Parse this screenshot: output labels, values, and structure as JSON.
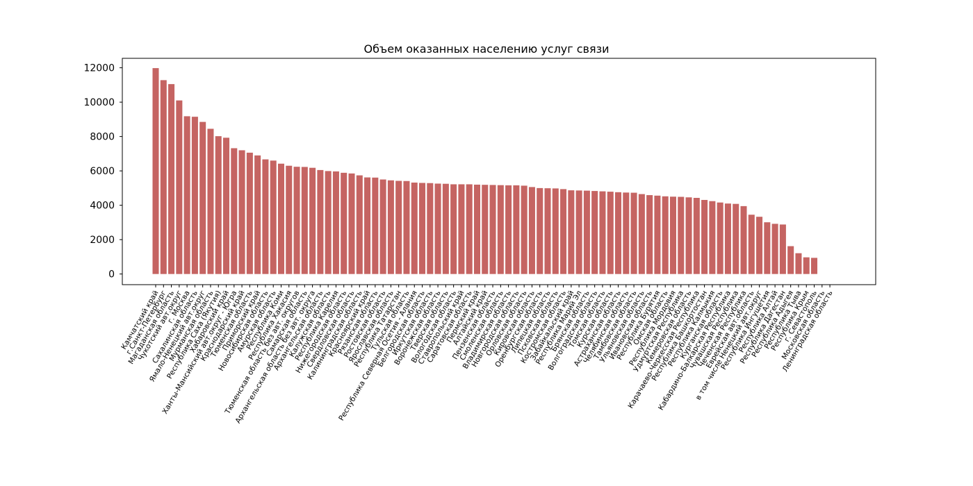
{
  "chart_data": {
    "type": "bar",
    "title": "Объем оказанных населению услуг связи",
    "xlabel": "",
    "ylabel": "",
    "ylim": [
      -620,
      12550
    ],
    "yticks": [
      0,
      2000,
      4000,
      6000,
      8000,
      10000,
      12000
    ],
    "ytick_labels": [
      "0",
      "2000",
      "4000",
      "6000",
      "8000",
      "10000",
      "12000"
    ],
    "bar_color": "#c56462",
    "grid": false,
    "legend": "none",
    "categories": [
      "Камчатский край",
      "г.Санкт-Петербург",
      "Магаданская область",
      "Чукотский авт.округ",
      "г. Москва",
      "Сахалинская область",
      "Ямало-Ненецкий авт.округ",
      "Мурманская область",
      "Республика Саха (Якутия)",
      "Хабаровский край",
      "Ханты-Мансийский авт.округ - Югра",
      "Краснодарский край",
      "Тюменская область",
      "Приморский край",
      "Новосибирская область",
      "Амурская область",
      "Республика Коми",
      "Республика Хакасия",
      "Тюменская область без авт. округов",
      "Самарская область",
      "Архангельская область без авт. округа",
      "Архангельская область",
      "Калужская область",
      "Республика Карелия",
      "Нижегородская область",
      "Свердловская область",
      "Калининградская область",
      "Красноярский край",
      "Рязанская область",
      "Ростовская область",
      "Ярославская область",
      "Республика Татарстан",
      "Тульская область",
      "Республика Северная Осетия - Алания",
      "Белгородская область",
      "Иркутская область",
      "Воронежская область",
      "Тверская область",
      "Вологодская область",
      "Ставропольский край",
      "Саратовская область",
      "Пермский край",
      "Алтайский край",
      "Пензенская область",
      "Смоленская область",
      "Владимирская область",
      "Новгородская область",
      "Орловская область",
      "Кировская область",
      "Оренбургская область",
      "Липецкая область",
      "Псковская область",
      "Костромская область",
      "Забайкальский край",
      "Республика Марий Эл",
      "Брянская область",
      "Волгоградская область",
      "Томская область",
      "Курская область",
      "Астраханская область",
      "Челябинская область",
      "Тамбовская область",
      "Ульяновская область",
      "Ивановская область",
      "Республика Бурятия",
      "Омская область",
      "Республика Мордовия",
      "Удмуртская Республика",
      "Кемеровская область",
      "Карачаево-Черкесская Республика",
      "Республика Башкортостан",
      "Республика Калмыкия",
      "Курганская область",
      "Кабардино-Балкарская Республика",
      "Чувашская Республика",
      "Чеченская Республика",
      "Еврейская авт.область",
      "в том числе Ненецкий авт.округ",
      "Республика Ингушетия",
      "Республика Алтай",
      "Республика Дагестан",
      "Республика Адыгея",
      "Республика Тыва",
      "Республика Крым",
      "г. Севастополь",
      "Московская область",
      "Ленинградская область"
    ],
    "values": [
      11980,
      11280,
      11050,
      10100,
      9180,
      9150,
      8850,
      8450,
      8020,
      7930,
      7320,
      7200,
      7060,
      6900,
      6670,
      6600,
      6420,
      6300,
      6240,
      6230,
      6180,
      6050,
      5990,
      5970,
      5890,
      5850,
      5740,
      5620,
      5610,
      5500,
      5450,
      5420,
      5410,
      5320,
      5300,
      5290,
      5260,
      5250,
      5220,
      5220,
      5220,
      5200,
      5190,
      5180,
      5170,
      5160,
      5160,
      5140,
      5060,
      5000,
      4990,
      4980,
      4940,
      4870,
      4860,
      4850,
      4830,
      4810,
      4790,
      4760,
      4740,
      4730,
      4650,
      4590,
      4560,
      4520,
      4500,
      4490,
      4460,
      4430,
      4310,
      4240,
      4160,
      4100,
      4080,
      3950,
      3450,
      3330,
      3010,
      2920,
      2880,
      1620,
      1210,
      970,
      940,
      null,
      null
    ]
  }
}
